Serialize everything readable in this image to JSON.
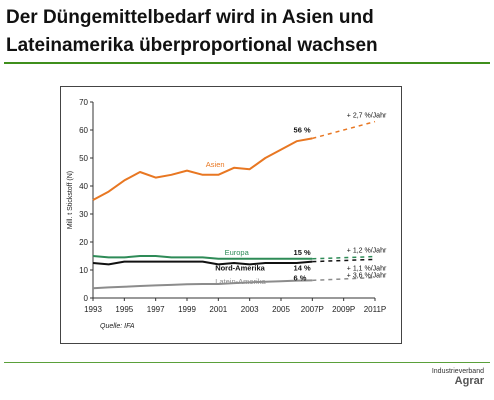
{
  "slide": {
    "title": "Der Düngemittelbedarf wird in Asien und Lateinamerika überproportional wachsen",
    "org_line1": "Industrieverband",
    "org_line2": "Agrar",
    "accent_color": "#3f8f1c"
  },
  "chart_data": {
    "type": "line",
    "title": "",
    "xlabel": "",
    "ylabel": "Mill. t Stickstoff (N)",
    "xlim": [
      1993,
      2011
    ],
    "ylim": [
      0,
      70
    ],
    "yticks": [
      0,
      10,
      20,
      30,
      40,
      50,
      60,
      70
    ],
    "xticks": [
      "1993",
      "1995",
      "1997",
      "1999",
      "2001",
      "2003",
      "2005",
      "2007P",
      "2009P",
      "2011P"
    ],
    "xtick_values": [
      1993,
      1995,
      1997,
      1999,
      2001,
      2003,
      2005,
      2007,
      2009,
      2011
    ],
    "source": "Quelle: IFA",
    "grid": false,
    "series": [
      {
        "name": "Asien",
        "color": "#e87722",
        "x": [
          1993,
          1994,
          1995,
          1996,
          1997,
          1998,
          1999,
          2000,
          2001,
          2002,
          2003,
          2004,
          2005,
          2006,
          2007
        ],
        "values": [
          35,
          38,
          42,
          45,
          43,
          44,
          45.5,
          44,
          44,
          46.5,
          46,
          50,
          53,
          56,
          57
        ],
        "share_label": "56 %",
        "projection_x": [
          2007,
          2011
        ],
        "projection_values": [
          57,
          63
        ],
        "growth_label": "+ 2,7 %/Jahr"
      },
      {
        "name": "Europa",
        "color": "#2e8b57",
        "x": [
          1993,
          1994,
          1995,
          1996,
          1997,
          1998,
          1999,
          2000,
          2001,
          2002,
          2003,
          2004,
          2005,
          2006,
          2007
        ],
        "values": [
          15,
          14.5,
          14.5,
          15,
          15,
          14.5,
          14.5,
          14.5,
          14,
          14,
          14,
          14,
          14,
          14,
          14
        ],
        "share_label": "15 %",
        "projection_x": [
          2007,
          2011
        ],
        "projection_values": [
          14,
          14.8
        ],
        "growth_label": "+ 1,2 %/Jahr"
      },
      {
        "name": "Nord-Amerika",
        "color": "#111111",
        "x": [
          1993,
          1994,
          1995,
          1996,
          1997,
          1998,
          1999,
          2000,
          2001,
          2002,
          2003,
          2004,
          2005,
          2006,
          2007
        ],
        "values": [
          12.5,
          12,
          13,
          13,
          13,
          13,
          13,
          13,
          12,
          12.5,
          12,
          12.5,
          12.5,
          12.5,
          13
        ],
        "share_label": "14 %",
        "projection_x": [
          2007,
          2011
        ],
        "projection_values": [
          13,
          13.8
        ],
        "growth_label": "+ 1,1 %/Jahr"
      },
      {
        "name": "Latein-Amerika",
        "color": "#8c8c8c",
        "x": [
          1993,
          1994,
          1995,
          1996,
          1997,
          1998,
          1999,
          2000,
          2001,
          2002,
          2003,
          2004,
          2005,
          2006,
          2007
        ],
        "values": [
          3.5,
          3.8,
          4,
          4.3,
          4.5,
          4.7,
          4.9,
          5,
          5,
          5.3,
          5.6,
          5.8,
          6,
          6.2,
          6.3
        ],
        "share_label": "6 %",
        "projection_x": [
          2007,
          2011
        ],
        "projection_values": [
          6.3,
          7.3
        ],
        "growth_label": "+ 3,6 %/Jahr"
      }
    ]
  }
}
